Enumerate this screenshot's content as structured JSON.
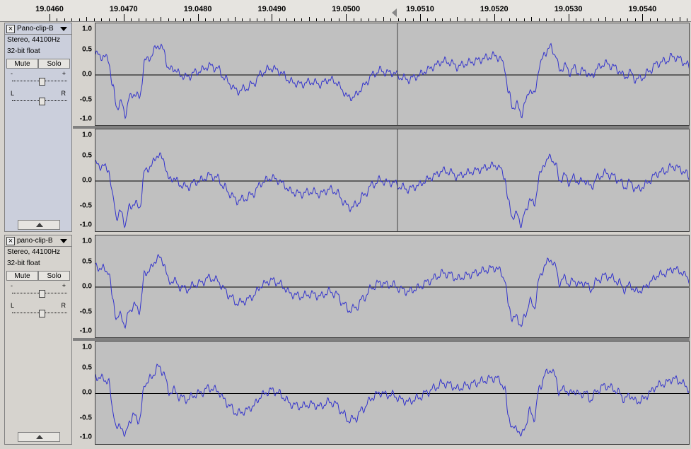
{
  "ruler": {
    "labels": [
      "19.0460",
      "19.0470",
      "19.0480",
      "19.0490",
      "19.0500",
      "19.0510",
      "19.0520",
      "19.0530",
      "19.0540"
    ]
  },
  "tracks": [
    {
      "name": "Pano-clip-B",
      "format": "Stereo, 44100Hz",
      "depth": "32-bit float",
      "mute_label": "Mute",
      "solo_label": "Solo",
      "gain_minus": "-",
      "gain_plus": "+",
      "pan_left": "L",
      "pan_right": "R",
      "scale": [
        "1.0",
        "0.5",
        "0.0",
        "-0.5",
        "-1.0"
      ]
    },
    {
      "name": "pano-clip-B",
      "format": "Stereo, 44100Hz",
      "depth": "32-bit float",
      "mute_label": "Mute",
      "solo_label": "Solo",
      "gain_minus": "-",
      "gain_plus": "+",
      "pan_left": "L",
      "pan_right": "R",
      "scale": [
        "1.0",
        "0.5",
        "0.0",
        "-0.5",
        "-1.0"
      ]
    }
  ],
  "colors": {
    "waveform": "#3333cc",
    "background": "#c0c0c0",
    "selection_cursor": "#404040"
  }
}
